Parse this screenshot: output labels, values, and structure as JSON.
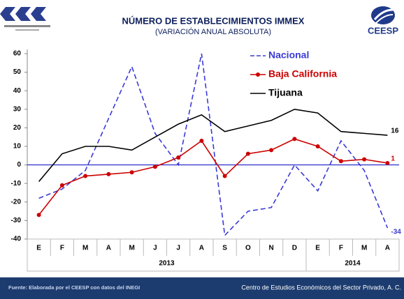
{
  "chart_data": {
    "type": "line",
    "title": "NÚMERO DE ESTABLECIMIENTOS IMMEX",
    "subtitle": "(VARIACIÓN ANUAL ABSOLUTA)",
    "categories": [
      "E",
      "F",
      "M",
      "A",
      "M",
      "J",
      "J",
      "A",
      "S",
      "O",
      "N",
      "D",
      "E",
      "F",
      "M",
      "A"
    ],
    "x_groups": [
      {
        "label": "2013",
        "count": 12
      },
      {
        "label": "2014",
        "count": 4
      }
    ],
    "series": [
      {
        "name": "Nacional",
        "color": "#3a3ad6",
        "dash": true,
        "marker": false,
        "values": [
          -18,
          -13,
          -3,
          25,
          53,
          17,
          0,
          60,
          -38,
          -25,
          -23,
          0,
          -14,
          13,
          -3,
          -34
        ]
      },
      {
        "name": "Baja California",
        "color": "#cc0000",
        "dash": false,
        "marker": true,
        "values": [
          -27,
          -11,
          -6,
          -5,
          -4,
          -1,
          4,
          13,
          -6,
          6,
          8,
          14,
          10,
          2,
          3,
          1
        ]
      },
      {
        "name": "Tijuana",
        "color": "#000000",
        "dash": false,
        "marker": false,
        "values": [
          -9,
          6,
          10,
          10,
          8,
          15,
          22,
          27,
          18,
          21,
          24,
          30,
          28,
          18,
          17,
          16
        ]
      }
    ],
    "ylim": [
      -40,
      60
    ],
    "yticks": [
      -40,
      -30,
      -20,
      -10,
      0,
      10,
      20,
      30,
      40,
      50,
      60
    ],
    "zero_line_color": "#0000c0",
    "legend": "top-right"
  },
  "header": {
    "logo_text": "CEESP"
  },
  "footer": {
    "source": "Fuente: Elaborada por el CEESP con datos del INEGI",
    "organization": "Centro de Estudios Económicos del Sector Privado, A. C."
  }
}
